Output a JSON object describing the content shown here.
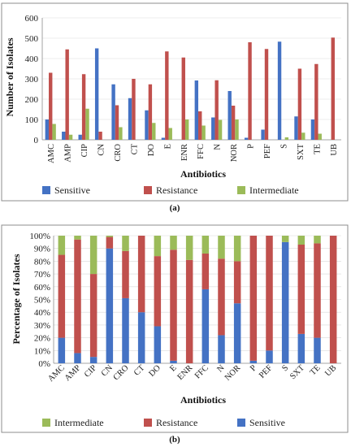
{
  "chart_data": [
    {
      "type": "bar",
      "panel_label": "(a)",
      "categories": [
        "AMC",
        "AMP",
        "CIP",
        "CN",
        "CRO",
        "CT",
        "DO",
        "E",
        "ENR",
        "FFC",
        "N",
        "NOR",
        "P",
        "PEF",
        "S",
        "SXT",
        "TE",
        "UB"
      ],
      "series": [
        {
          "name": "Sensitive",
          "color": "#4472c4",
          "values": [
            100,
            40,
            25,
            450,
            273,
            205,
            145,
            10,
            0,
            292,
            110,
            240,
            10,
            50,
            483,
            115,
            100,
            0
          ]
        },
        {
          "name": "Resistance",
          "color": "#c0504d",
          "values": [
            330,
            445,
            323,
            40,
            170,
            300,
            273,
            435,
            405,
            140,
            293,
            168,
            480,
            447,
            0,
            350,
            373,
            503
          ]
        },
        {
          "name": "Intermediate",
          "color": "#9bbb59",
          "values": [
            78,
            25,
            153,
            0,
            62,
            0,
            83,
            58,
            100,
            70,
            98,
            100,
            0,
            0,
            12,
            35,
            30,
            0
          ]
        }
      ],
      "xlabel": "Antibiotics",
      "ylabel": "Number of Isolates",
      "ylim": [
        0,
        600
      ],
      "yticks": [
        "0",
        "100",
        "200",
        "300",
        "400",
        "500",
        "600"
      ],
      "legend_position": "bottom",
      "grid": true
    },
    {
      "type": "bar",
      "stacked": true,
      "panel_label": "(b)",
      "categories": [
        "AMC",
        "AMP",
        "CIP",
        "CN",
        "CRO",
        "CT",
        "DO",
        "E",
        "ENR",
        "FFC",
        "N",
        "NOR",
        "P",
        "PEF",
        "S",
        "SXT",
        "TE",
        "UB"
      ],
      "series": [
        {
          "name": "Sensitive",
          "color": "#4472c4",
          "values": [
            20,
            8,
            5,
            90,
            51,
            40,
            29,
            2,
            0,
            58,
            22,
            47,
            2,
            10,
            95,
            23,
            20,
            0
          ]
        },
        {
          "name": "Resistance",
          "color": "#c0504d",
          "values": [
            65,
            89,
            65,
            9,
            37,
            60,
            55,
            87,
            81,
            28,
            60,
            33,
            98,
            90,
            0,
            70,
            74,
            100
          ]
        },
        {
          "name": "Intermediate",
          "color": "#9bbb59",
          "values": [
            15,
            3,
            30,
            1,
            12,
            0,
            16,
            11,
            19,
            14,
            18,
            20,
            0,
            0,
            5,
            7,
            6,
            0
          ]
        }
      ],
      "xlabel": "Antibiotics",
      "ylabel": "Percentage of Isolates",
      "ylim": [
        0,
        100
      ],
      "yticks": [
        "0%",
        "10%",
        "20%",
        "30%",
        "40%",
        "50%",
        "60%",
        "70%",
        "80%",
        "90%",
        "100%"
      ],
      "legend_order": [
        "Intermediate",
        "Resistance",
        "Sensitive"
      ],
      "legend_position": "bottom",
      "grid": true
    }
  ]
}
